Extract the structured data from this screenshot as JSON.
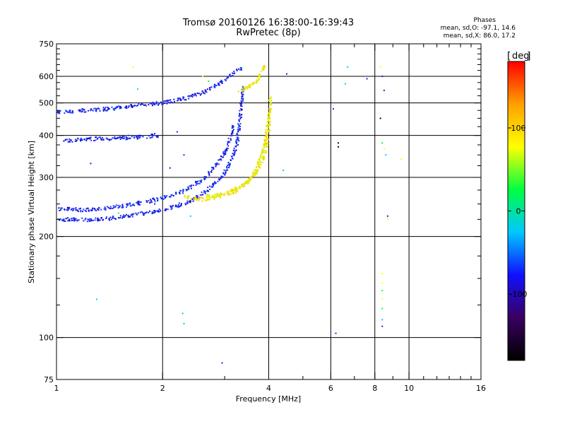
{
  "chart_data": {
    "type": "scatter",
    "title": "Tromsø 20160126 16:38:00-16:39:43",
    "subtitle": "RwPretec (8p)",
    "xlabel": "Frequency [MHz]",
    "ylabel": "Stationary phase Virtual Height [km]",
    "x_scale": "log",
    "y_scale": "log",
    "xlim": [
      1,
      16
    ],
    "ylim": [
      75,
      750
    ],
    "x_ticks": [
      1,
      2,
      4,
      6,
      8,
      10,
      16
    ],
    "y_ticks": [
      75,
      100,
      200,
      300,
      400,
      500,
      600,
      750
    ],
    "x_minor_ticks": [
      3,
      5,
      7,
      9,
      11,
      12,
      13,
      14,
      15
    ],
    "y_minor_ticks": [
      125,
      150,
      175,
      225,
      250,
      275,
      325,
      350,
      375,
      425,
      450,
      475,
      525,
      550,
      575,
      625,
      650,
      675,
      700,
      725
    ],
    "grid": true,
    "colorbar": {
      "label": "deg",
      "ticks": [
        100,
        0,
        -100
      ],
      "range": [
        -180,
        180
      ],
      "colors": [
        "#000000",
        "#3a0060",
        "#1010ff",
        "#00c8ff",
        "#00ff40",
        "#ffff00",
        "#ffa000",
        "#ff0000"
      ]
    },
    "stats_header": "Phases",
    "stats": [
      "mean, sd,O: -97.1, 14.6",
      "mean, sd,X:  86.0, 17.2"
    ],
    "series": [
      {
        "mode": "O",
        "phase": -100,
        "color": "#2020e0",
        "traces": [
          [
            [
              1.0,
              225
            ],
            [
              1.2,
              224
            ],
            [
              1.4,
              226
            ],
            [
              1.6,
              230
            ],
            [
              1.8,
              235
            ],
            [
              2.0,
              240
            ],
            [
              2.2,
              247
            ],
            [
              2.4,
              255
            ],
            [
              2.6,
              268
            ],
            [
              2.8,
              285
            ],
            [
              3.0,
              310
            ],
            [
              3.15,
              340
            ],
            [
              3.25,
              380
            ],
            [
              3.3,
              420
            ],
            [
              3.33,
              470
            ],
            [
              3.36,
              520
            ],
            [
              3.4,
              560
            ]
          ],
          [
            [
              1.0,
              242
            ],
            [
              1.2,
              240
            ],
            [
              1.4,
              243
            ],
            [
              1.6,
              248
            ],
            [
              1.8,
              254
            ],
            [
              2.0,
              260
            ],
            [
              2.2,
              268
            ],
            [
              2.4,
              280
            ],
            [
              2.6,
              296
            ],
            [
              2.8,
              320
            ],
            [
              3.0,
              355
            ],
            [
              3.1,
              390
            ],
            [
              3.18,
              430
            ]
          ],
          [
            [
              1.0,
              470
            ],
            [
              1.2,
              475
            ],
            [
              1.4,
              480
            ],
            [
              1.6,
              488
            ],
            [
              1.8,
              495
            ],
            [
              2.0,
              500
            ],
            [
              2.2,
              510
            ],
            [
              2.4,
              522
            ],
            [
              2.6,
              538
            ],
            [
              2.8,
              560
            ],
            [
              3.0,
              585
            ],
            [
              3.2,
              615
            ],
            [
              3.35,
              635
            ]
          ],
          [
            [
              1.05,
              385
            ],
            [
              1.2,
              390
            ],
            [
              1.5,
              392
            ],
            [
              1.7,
              395
            ],
            [
              1.95,
              400
            ]
          ]
        ]
      },
      {
        "mode": "X",
        "phase": 90,
        "color": "#f0e000",
        "traces": [
          [
            [
              2.3,
              262
            ],
            [
              2.6,
              258
            ],
            [
              2.9,
              262
            ],
            [
              3.2,
              272
            ],
            [
              3.5,
              290
            ],
            [
              3.7,
              320
            ],
            [
              3.85,
              360
            ],
            [
              3.95,
              410
            ],
            [
              4.02,
              470
            ],
            [
              4.05,
              520
            ]
          ],
          [
            [
              2.6,
              262
            ],
            [
              3.0,
              268
            ],
            [
              3.4,
              285
            ],
            [
              3.7,
              310
            ],
            [
              3.9,
              350
            ],
            [
              3.98,
              400
            ],
            [
              4.03,
              450
            ]
          ],
          [
            [
              3.3,
              545
            ],
            [
              3.5,
              560
            ],
            [
              3.7,
              580
            ],
            [
              3.85,
              620
            ],
            [
              3.9,
              650
            ]
          ]
        ]
      }
    ],
    "scattered_points": [
      [
        1.3,
        130,
        "#00c8ff"
      ],
      [
        2.3,
        110,
        "#00c8ff"
      ],
      [
        2.28,
        118,
        "#00c8ff"
      ],
      [
        2.95,
        84,
        "#2020e0"
      ],
      [
        6.2,
        103,
        "#2020e0"
      ],
      [
        6.3,
        380,
        "#000060"
      ],
      [
        6.3,
        370,
        "#000060"
      ],
      [
        6.1,
        480,
        "#2020e0"
      ],
      [
        6.6,
        570,
        "#00c8ff"
      ],
      [
        6.7,
        640,
        "#00c8ff"
      ],
      [
        7.6,
        590,
        "#2020e0"
      ],
      [
        8.3,
        640,
        "#ffff00"
      ],
      [
        8.4,
        600,
        "#2020e0"
      ],
      [
        8.5,
        545,
        "#2020e0"
      ],
      [
        8.3,
        450,
        "#000060"
      ],
      [
        8.4,
        380,
        "#00ff40"
      ],
      [
        8.5,
        365,
        "#ffff00"
      ],
      [
        8.6,
        350,
        "#00c8ff"
      ],
      [
        8.7,
        230,
        "#2020e0"
      ],
      [
        8.7,
        225,
        "#ffff00"
      ],
      [
        8.4,
        155,
        "#ffff00"
      ],
      [
        8.4,
        145,
        "#ffff00"
      ],
      [
        8.4,
        138,
        "#00ff40"
      ],
      [
        8.4,
        130,
        "#ffff00"
      ],
      [
        8.4,
        122,
        "#00ff40"
      ],
      [
        8.4,
        113,
        "#00c8ff"
      ],
      [
        8.4,
        108,
        "#2020e0"
      ],
      [
        9.5,
        340,
        "#ffff00"
      ],
      [
        4.5,
        610,
        "#2020e0"
      ],
      [
        4.4,
        315,
        "#00c8ff"
      ],
      [
        1.65,
        640,
        "#ffff00"
      ],
      [
        1.7,
        550,
        "#00ff40"
      ],
      [
        1.25,
        330,
        "#2020e0"
      ],
      [
        1.6,
        400,
        "#2020e0"
      ],
      [
        1.9,
        405,
        "#2020e0"
      ],
      [
        2.1,
        320,
        "#2020e0"
      ],
      [
        2.2,
        410,
        "#2020e0"
      ],
      [
        2.3,
        350,
        "#2020e0"
      ],
      [
        2.6,
        600,
        "#ffff00"
      ],
      [
        2.7,
        580,
        "#00ff40"
      ],
      [
        2.9,
        565,
        "#2020e0"
      ],
      [
        2.4,
        230,
        "#00c8ff"
      ],
      [
        1.9,
        250,
        "#2020e0"
      ],
      [
        1.5,
        235,
        "#00ff40"
      ]
    ]
  }
}
